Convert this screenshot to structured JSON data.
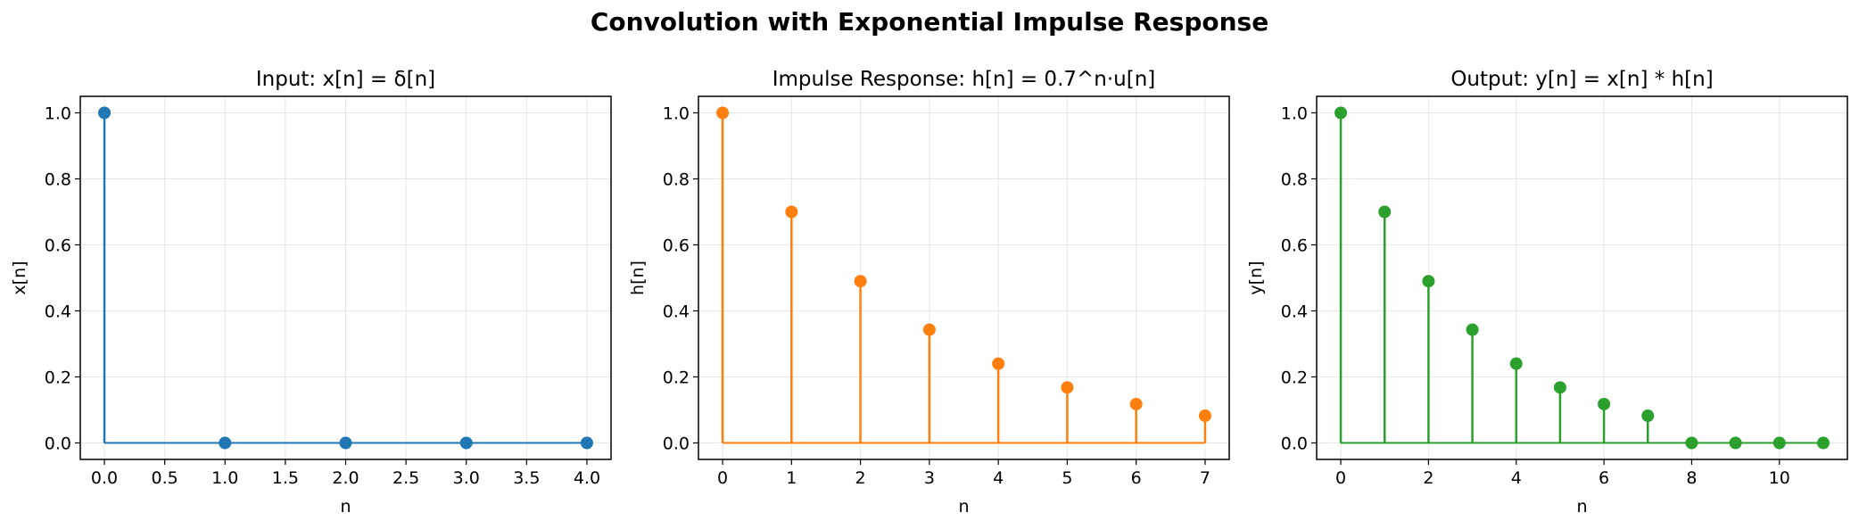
{
  "figure": {
    "title": "Convolution with Exponential Impulse Response"
  },
  "chart_data": [
    {
      "type": "stem",
      "title": "Input: x[n] = δ[n]",
      "xlabel": "n",
      "ylabel": "x[n]",
      "color": "#1f77b4",
      "x": [
        0,
        1,
        2,
        3,
        4
      ],
      "y": [
        1,
        0,
        0,
        0,
        0
      ],
      "xlim": [
        -0.2,
        4.2
      ],
      "ylim": [
        -0.05,
        1.05
      ],
      "xticks": [
        0.0,
        0.5,
        1.0,
        1.5,
        2.0,
        2.5,
        3.0,
        3.5,
        4.0
      ],
      "xtick_labels": [
        "0.0",
        "0.5",
        "1.0",
        "1.5",
        "2.0",
        "2.5",
        "3.0",
        "3.5",
        "4.0"
      ],
      "yticks": [
        0.0,
        0.2,
        0.4,
        0.6,
        0.8,
        1.0
      ],
      "ytick_labels": [
        "0.0",
        "0.2",
        "0.4",
        "0.6",
        "0.8",
        "1.0"
      ],
      "grid": true
    },
    {
      "type": "stem",
      "title": "Impulse Response: h[n] = 0.7^n·u[n]",
      "xlabel": "n",
      "ylabel": "h[n]",
      "color": "#ff7f0e",
      "x": [
        0,
        1,
        2,
        3,
        4,
        5,
        6,
        7
      ],
      "y": [
        1.0,
        0.7,
        0.49,
        0.343,
        0.2401,
        0.16807,
        0.117649,
        0.0823543
      ],
      "xlim": [
        -0.35,
        7.35
      ],
      "ylim": [
        -0.05,
        1.05
      ],
      "xticks": [
        0,
        1,
        2,
        3,
        4,
        5,
        6,
        7
      ],
      "xtick_labels": [
        "0",
        "1",
        "2",
        "3",
        "4",
        "5",
        "6",
        "7"
      ],
      "yticks": [
        0.0,
        0.2,
        0.4,
        0.6,
        0.8,
        1.0
      ],
      "ytick_labels": [
        "0.0",
        "0.2",
        "0.4",
        "0.6",
        "0.8",
        "1.0"
      ],
      "grid": true
    },
    {
      "type": "stem",
      "title": "Output: y[n] = x[n] * h[n]",
      "xlabel": "n",
      "ylabel": "y[n]",
      "color": "#2ca02c",
      "x": [
        0,
        1,
        2,
        3,
        4,
        5,
        6,
        7,
        8,
        9,
        10,
        11
      ],
      "y": [
        1.0,
        0.7,
        0.49,
        0.343,
        0.2401,
        0.16807,
        0.117649,
        0.0823543,
        0,
        0,
        0,
        0
      ],
      "xlim": [
        -0.55,
        11.55
      ],
      "ylim": [
        -0.05,
        1.05
      ],
      "xticks": [
        0,
        2,
        4,
        6,
        8,
        10
      ],
      "xtick_labels": [
        "0",
        "2",
        "4",
        "6",
        "8",
        "10"
      ],
      "yticks": [
        0.0,
        0.2,
        0.4,
        0.6,
        0.8,
        1.0
      ],
      "ytick_labels": [
        "0.0",
        "0.2",
        "0.4",
        "0.6",
        "0.8",
        "1.0"
      ],
      "grid": true
    }
  ]
}
